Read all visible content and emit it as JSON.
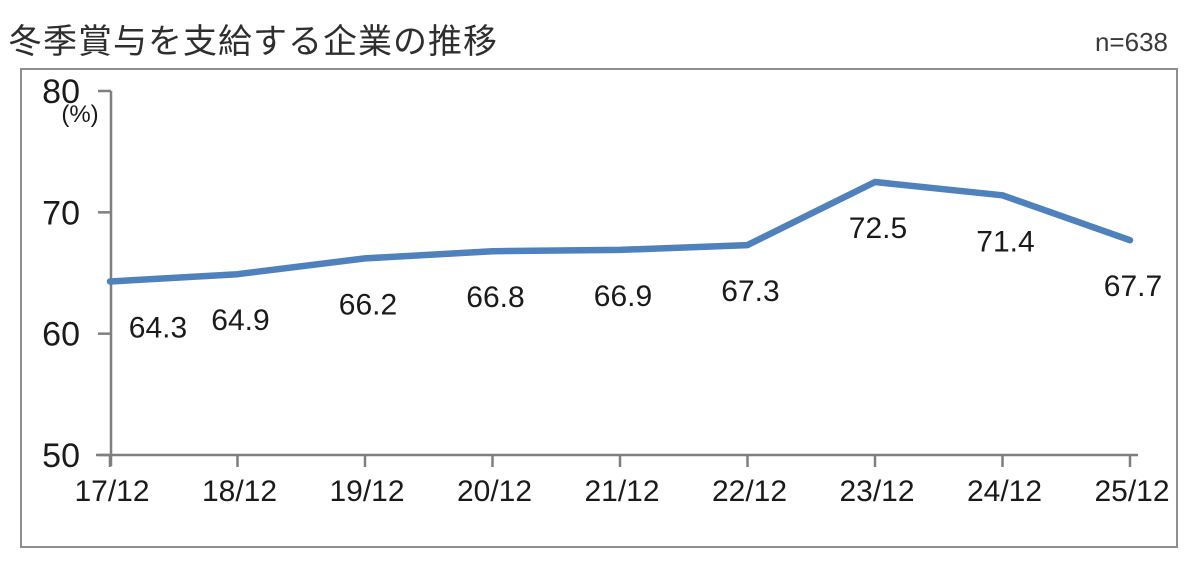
{
  "header": {
    "title": "冬季賞与を支給する企業の推移",
    "sample_label": "n=638"
  },
  "chart_data": {
    "type": "line",
    "title": "冬季賞与を支給する企業の推移",
    "sample_size": "n=638",
    "categories": [
      "17/12",
      "18/12",
      "19/12",
      "20/12",
      "21/12",
      "22/12",
      "23/12",
      "24/12",
      "25/12"
    ],
    "values": [
      64.3,
      64.9,
      66.2,
      66.8,
      66.9,
      67.3,
      72.5,
      71.4,
      67.7
    ],
    "data_labels": [
      "64.3",
      "64.9",
      "66.2",
      "66.8",
      "66.9",
      "67.3",
      "72.5",
      "71.4",
      "67.7"
    ],
    "ylabel": "(%)",
    "yticks": [
      80,
      70,
      60,
      50
    ],
    "ylim": [
      50,
      80
    ],
    "grid": false,
    "legend": "none",
    "line_color": "#4F81BD",
    "axis_color": "#7F7F7F",
    "label_color": "#1a1a1a"
  }
}
